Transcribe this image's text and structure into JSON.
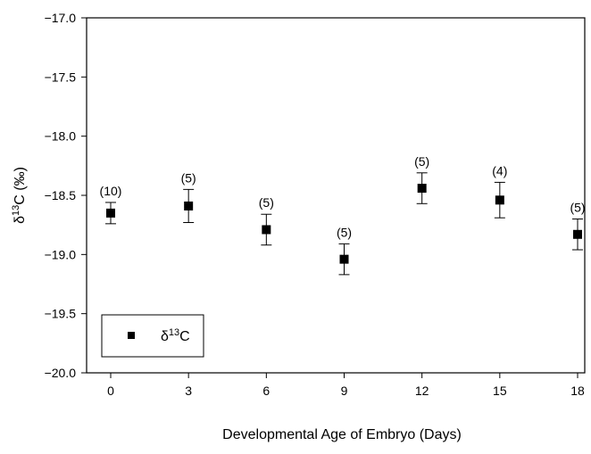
{
  "chart_data": {
    "type": "scatter",
    "title": "",
    "xlabel": "Developmental Age of Embryo (Days)",
    "ylabel": "δ13C (‰)",
    "ylabel_parts": {
      "delta": "δ",
      "sup": "13",
      "rest": "C (‰)"
    },
    "x_ticks": [
      "0",
      "3",
      "6",
      "9",
      "12",
      "15",
      "18"
    ],
    "y_ticks": [
      "−17.0",
      "−17.5",
      "−18.0",
      "−18.5",
      "−19.0",
      "−19.5",
      "−20.0"
    ],
    "ylim": [
      -20.0,
      -17.0
    ],
    "grid": false,
    "legend": {
      "position": "bottom-left",
      "entries": [
        {
          "marker": "square",
          "label_parts": {
            "delta": "δ",
            "sup": "13",
            "rest": "C"
          }
        }
      ]
    },
    "series": [
      {
        "marker": "square",
        "color": "#000000",
        "points": [
          {
            "x": 0,
            "y": -18.65,
            "err": 0.09,
            "n_label": "(10)"
          },
          {
            "x": 3,
            "y": -18.59,
            "err": 0.14,
            "n_label": "(5)"
          },
          {
            "x": 6,
            "y": -18.79,
            "err": 0.13,
            "n_label": "(5)"
          },
          {
            "x": 9,
            "y": -19.04,
            "err": 0.13,
            "n_label": "(5)"
          },
          {
            "x": 12,
            "y": -18.44,
            "err": 0.13,
            "n_label": "(5)"
          },
          {
            "x": 15,
            "y": -18.54,
            "err": 0.15,
            "n_label": "(4)"
          },
          {
            "x": 18,
            "y": -18.83,
            "err": 0.13,
            "n_label": "(5)"
          }
        ]
      }
    ]
  }
}
